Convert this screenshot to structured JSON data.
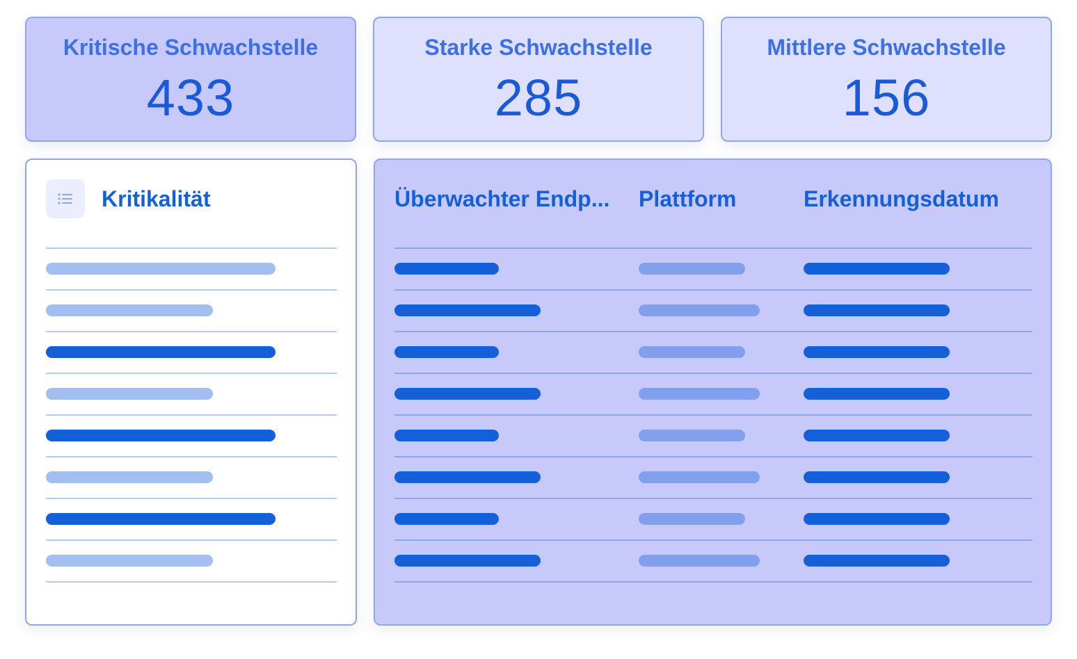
{
  "stats": [
    {
      "label": "Kritische Schwachstelle",
      "value": "433"
    },
    {
      "label": "Starke Schwachstelle",
      "value": "285"
    },
    {
      "label": "Mittlere Schwachstelle",
      "value": "156"
    }
  ],
  "list_panel": {
    "title": "Kritikalität",
    "icon": "list-icon"
  },
  "table_panel": {
    "columns": [
      "Überwachter Endp...",
      "Plattform",
      "Erkennungsdatum"
    ]
  },
  "colors": {
    "accent": "#1560d8",
    "card_strong": "#c7c9fb",
    "card_soft": "#dfe0fd",
    "border": "#8fa6ea"
  }
}
